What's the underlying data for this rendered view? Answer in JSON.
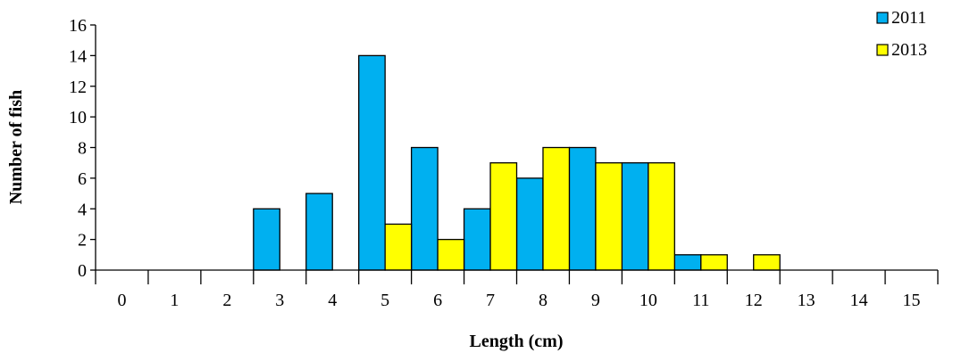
{
  "chart_data": {
    "type": "bar",
    "xlabel": "Length (cm)",
    "ylabel": "Number of fish",
    "ylim": [
      0,
      16
    ],
    "ytick_step": 2,
    "categories": [
      "0",
      "1",
      "2",
      "3",
      "4",
      "5",
      "6",
      "7",
      "8",
      "9",
      "10",
      "11",
      "12",
      "13",
      "14",
      "15"
    ],
    "series": [
      {
        "name": "2011",
        "color": "#00B0F0",
        "values": [
          0,
          0,
          0,
          4,
          5,
          14,
          8,
          4,
          6,
          8,
          7,
          1,
          0,
          0,
          0,
          0
        ]
      },
      {
        "name": "2013",
        "color": "#FFFF00",
        "values": [
          0,
          0,
          0,
          0,
          0,
          3,
          2,
          7,
          8,
          7,
          7,
          1,
          1,
          0,
          0,
          0
        ]
      }
    ],
    "legend": "top-right",
    "grid": false
  }
}
